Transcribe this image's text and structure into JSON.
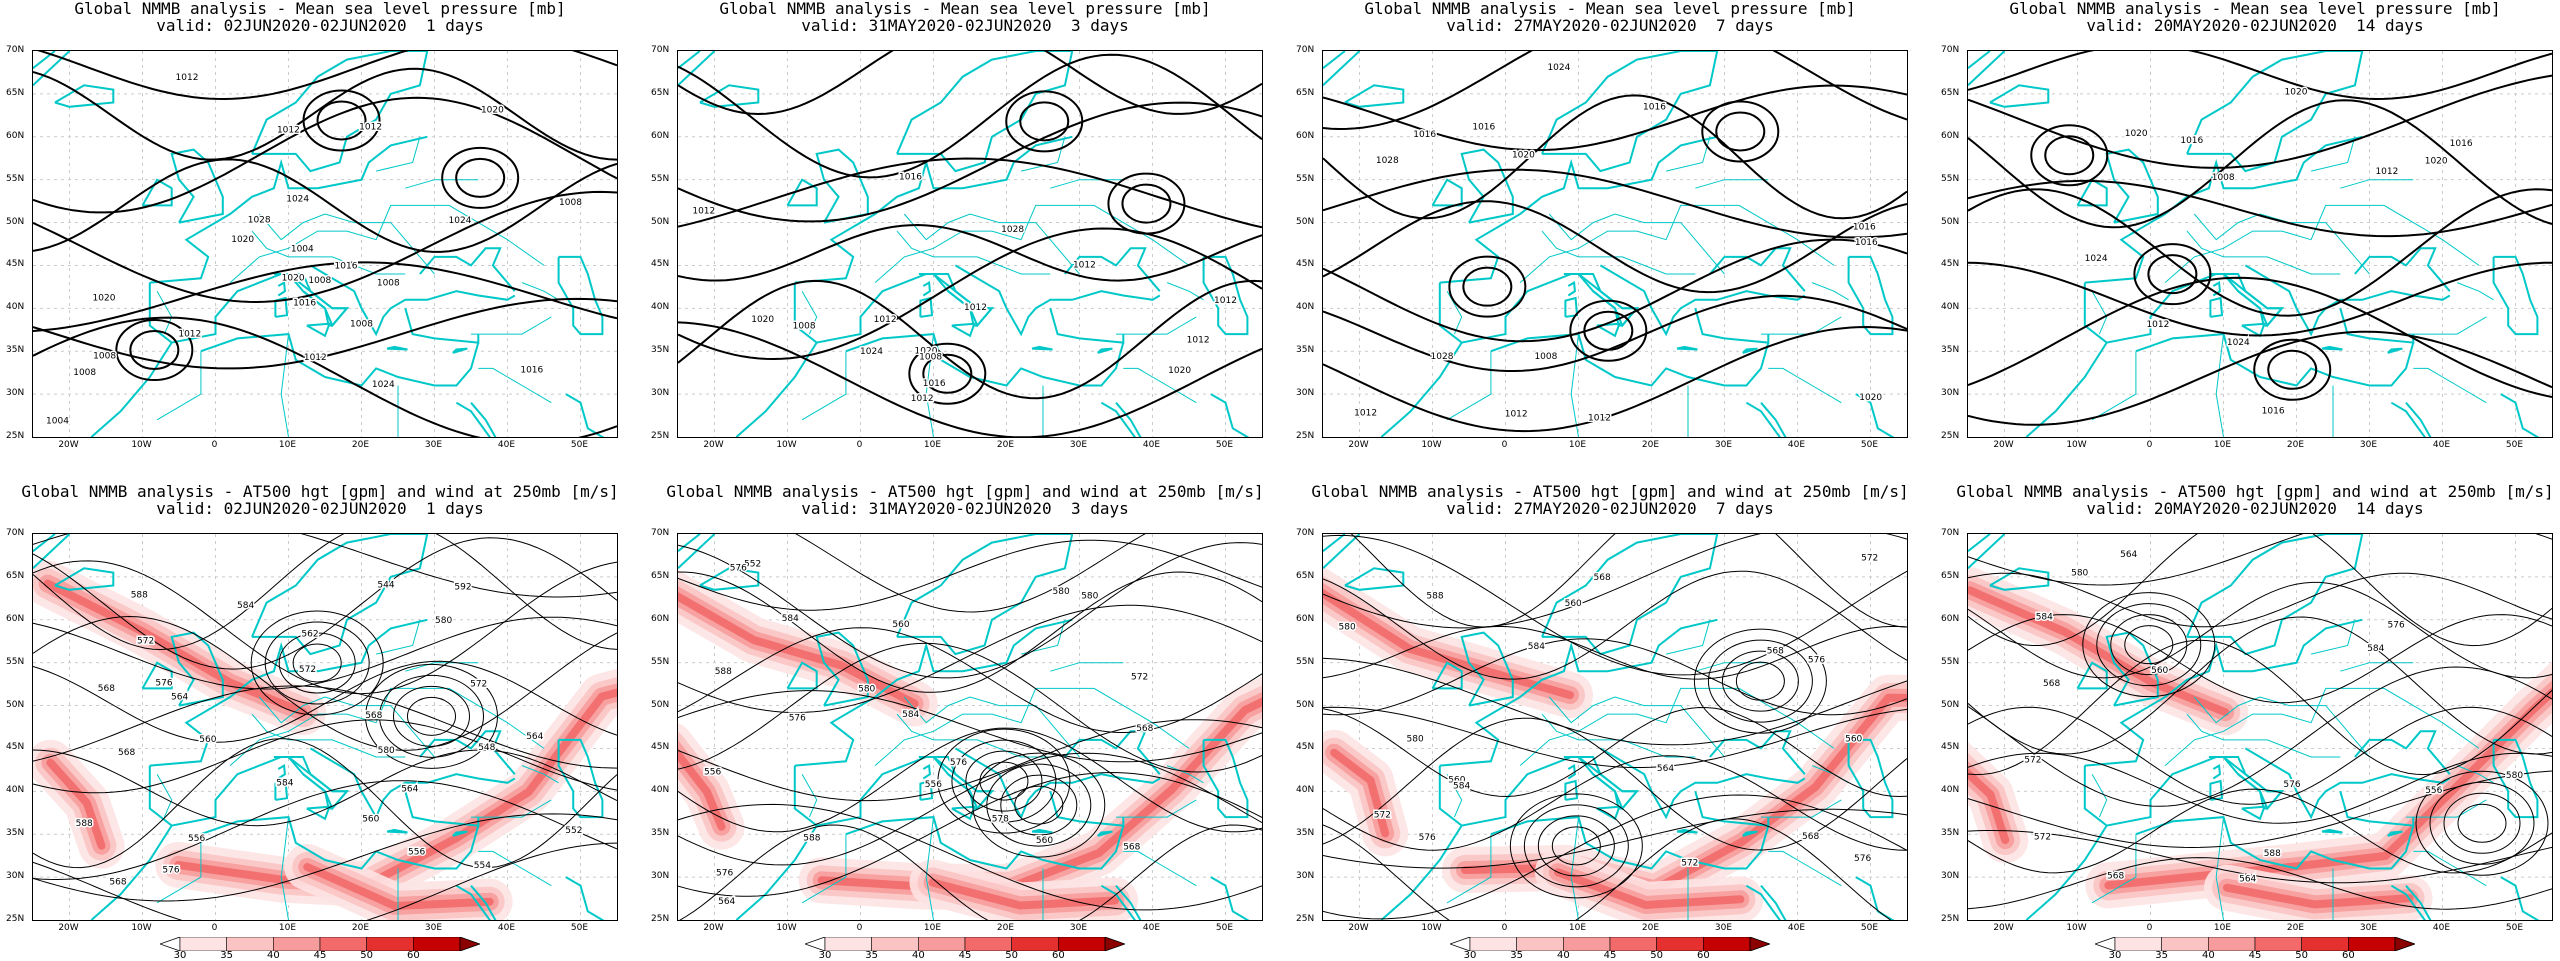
{
  "panels": [
    {
      "id": "mslp-1",
      "row": 0,
      "col": 0,
      "title_line1": "Global NMMB analysis - Mean sea level pressure [mb]",
      "title_line2": "valid: 02JUN2020-02JUN2020  1 days",
      "field": "mslp",
      "contour_labels": [
        "1024",
        "1020",
        "1028",
        "1024",
        "1024",
        "1020",
        "1016",
        "1012",
        "1008",
        "1020",
        "1020",
        "1016",
        "1016",
        "1012",
        "1012",
        "1008",
        "1012",
        "1008",
        "1004",
        "1004",
        "1008",
        "1008",
        "1012",
        "1008"
      ]
    },
    {
      "id": "mslp-3",
      "row": 0,
      "col": 1,
      "title_line1": "Global NMMB analysis - Mean sea level pressure [mb]",
      "title_line2": "valid: 31MAY2020-02JUN2020  3 days",
      "field": "mslp",
      "contour_labels": [
        "1020",
        "1028",
        "1024",
        "1020",
        "1016",
        "1020",
        "1016",
        "1012",
        "1012",
        "1008",
        "1012",
        "1012",
        "1012",
        "1008",
        "1012",
        "1012"
      ]
    },
    {
      "id": "mslp-7",
      "row": 0,
      "col": 2,
      "title_line1": "Global NMMB analysis - Mean sea level pressure [mb]",
      "title_line2": "valid: 27MAY2020-02JUN2020  7 days",
      "field": "mslp",
      "contour_labels": [
        "1028",
        "1028",
        "1016",
        "1012",
        "1020",
        "1024",
        "1020",
        "1016",
        "1016",
        "1012",
        "1016",
        "1012",
        "1016",
        "1008"
      ]
    },
    {
      "id": "mslp-14",
      "row": 0,
      "col": 3,
      "title_line1": "Global NMMB analysis - Mean sea level pressure [mb]",
      "title_line2": "valid: 20MAY2020-02JUN2020  14 days",
      "field": "mslp",
      "contour_labels": [
        "1024",
        "1020",
        "1024",
        "1020",
        "1020",
        "1016",
        "1016",
        "1012",
        "1008",
        "1016",
        "1012"
      ]
    },
    {
      "id": "z500-1",
      "row": 1,
      "col": 0,
      "title_line1": "Global NMMB analysis - AT500 hgt [gpm] and wind at 250mb [m/s]",
      "title_line2": "valid: 02JUN2020-02JUN2020  1 days",
      "field": "z500",
      "contour_labels": [
        "568",
        "562",
        "556",
        "560",
        "564",
        "568",
        "554",
        "544",
        "548",
        "552",
        "556",
        "564",
        "568",
        "572",
        "576",
        "580",
        "584",
        "588",
        "592",
        "572",
        "568",
        "564",
        "560",
        "580",
        "584",
        "588",
        "576",
        "572"
      ]
    },
    {
      "id": "z500-3",
      "row": 1,
      "col": 1,
      "title_line1": "Global NMMB analysis - AT500 hgt [gpm] and wind at 250mb [m/s]",
      "title_line2": "valid: 31MAY2020-02JUN2020  3 days",
      "field": "z500",
      "contour_labels": [
        "576",
        "580",
        "588",
        "576",
        "556",
        "552",
        "560",
        "556",
        "560",
        "568",
        "572",
        "576",
        "580",
        "584",
        "588",
        "580",
        "584",
        "578",
        "564",
        "568",
        "576"
      ]
    },
    {
      "id": "z500-7",
      "row": 1,
      "col": 2,
      "title_line1": "Global NMMB analysis - AT500 hgt [gpm] and wind at 250mb [m/s]",
      "title_line2": "valid: 27MAY2020-02JUN2020  7 days",
      "field": "z500",
      "contour_labels": [
        "568",
        "572",
        "576",
        "568",
        "560",
        "564",
        "560",
        "560",
        "568",
        "572",
        "576",
        "580",
        "584",
        "588",
        "576",
        "580",
        "584",
        "572"
      ]
    },
    {
      "id": "z500-14",
      "row": 1,
      "col": 3,
      "title_line1": "Global NMMB analysis - AT500 hgt [gpm] and wind at 250mb [m/s]",
      "title_line2": "valid: 20MAY2020-02JUN2020  14 days",
      "field": "z500",
      "contour_labels": [
        "564",
        "568",
        "572",
        "576",
        "580",
        "584",
        "588",
        "556",
        "560",
        "564",
        "568",
        "572",
        "576",
        "580",
        "584"
      ]
    }
  ],
  "lat_labels": [
    "70N",
    "65N",
    "60N",
    "55N",
    "50N",
    "45N",
    "40N",
    "35N",
    "30N",
    "25N"
  ],
  "lon_labels": [
    "20W",
    "10W",
    "0",
    "10E",
    "20E",
    "30E",
    "40E",
    "50E"
  ],
  "colorbar": {
    "ticks": [
      "30",
      "35",
      "40",
      "45",
      "50",
      "60"
    ],
    "colors": [
      "#fde3e3",
      "#fbc4c4",
      "#f79c9c",
      "#f26a6a",
      "#e53030",
      "#c40000"
    ]
  },
  "colors": {
    "coastline": "#00c8c8",
    "contour": "#000000",
    "grid": "#cccccc",
    "jet": "#f04040"
  }
}
